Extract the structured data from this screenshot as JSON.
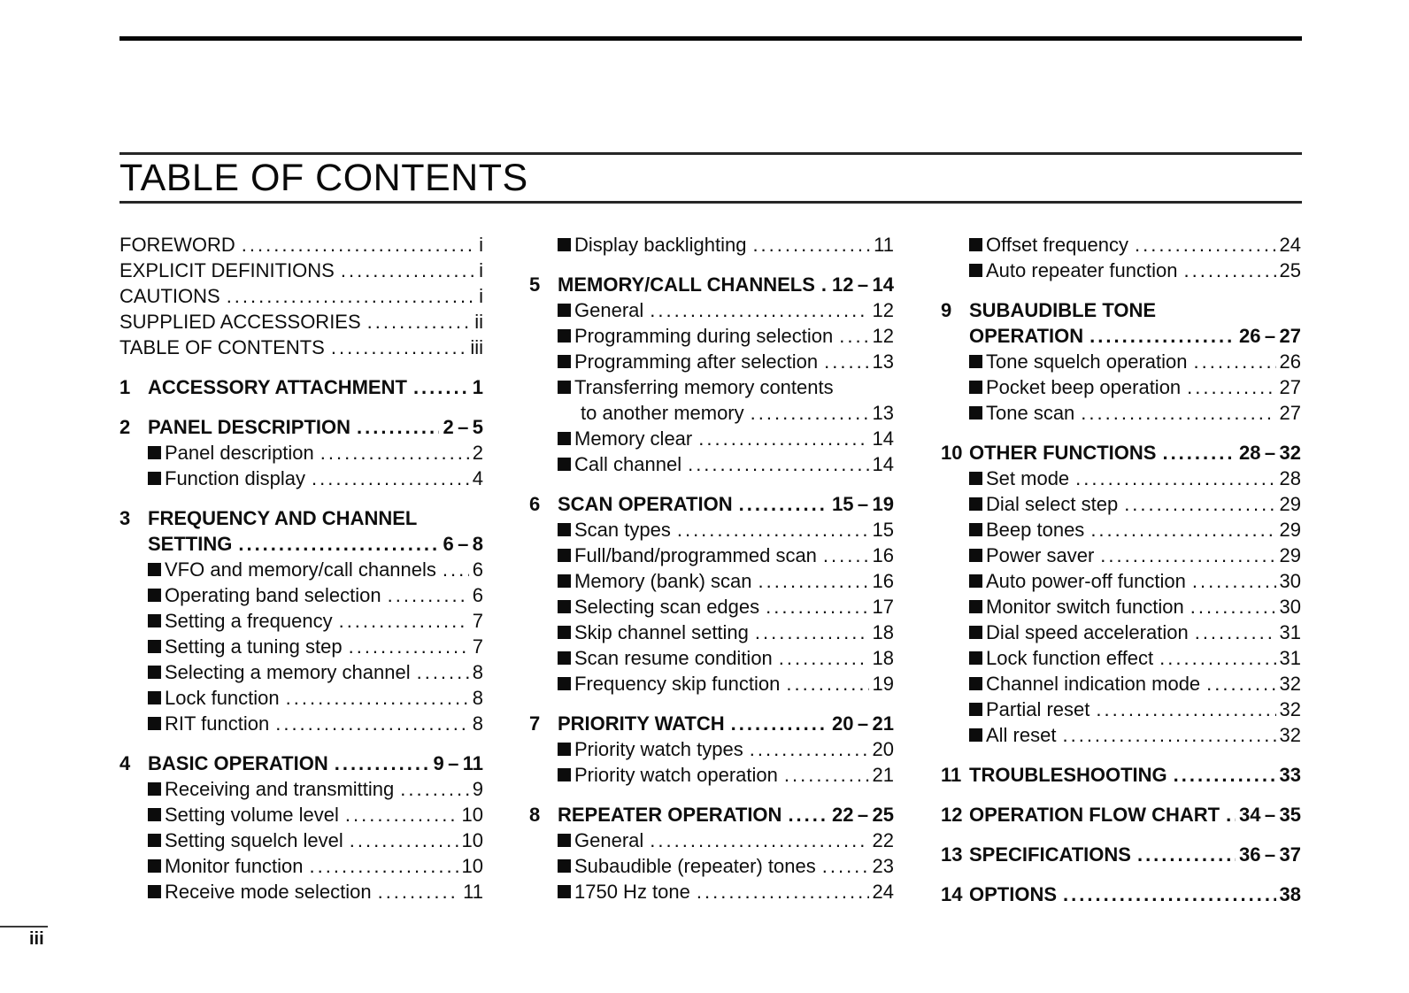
{
  "toc": {
    "title": "TABLE OF CONTENTS",
    "page_marker": "iii",
    "columns": [
      {
        "blocks": [
          {
            "kind": "plain",
            "items": [
              {
                "label": "FOREWORD",
                "page": "i"
              },
              {
                "label": "EXPLICIT DEFINITIONS",
                "page": "i"
              },
              {
                "label": "CAUTIONS",
                "page": "i"
              },
              {
                "label": "SUPPLIED ACCESSORIES",
                "page": "ii"
              },
              {
                "label": "TABLE OF CONTENTS",
                "page": "iii"
              }
            ]
          },
          {
            "kind": "section",
            "num": "1",
            "title_lines": [
              {
                "text": "ACCESSORY ATTACHMENT",
                "page": "1"
              }
            ],
            "items": []
          },
          {
            "kind": "section",
            "num": "2",
            "title_lines": [
              {
                "text": "PANEL DESCRIPTION",
                "page": "2 – 5"
              }
            ],
            "items": [
              {
                "label": "Panel description",
                "page": "2"
              },
              {
                "label": "Function display",
                "page": "4"
              }
            ]
          },
          {
            "kind": "section",
            "num": "3",
            "title_lines": [
              {
                "text": "FREQUENCY AND CHANNEL"
              },
              {
                "text": "SETTING",
                "page": "6 – 8"
              }
            ],
            "items": [
              {
                "label": "VFO and memory/call channels",
                "page": "6"
              },
              {
                "label": "Operating band selection",
                "page": "6"
              },
              {
                "label": "Setting a frequency",
                "page": "7"
              },
              {
                "label": "Setting a tuning step",
                "page": "7"
              },
              {
                "label": "Selecting a memory channel",
                "page": "8"
              },
              {
                "label": "Lock function",
                "page": "8"
              },
              {
                "label": "RIT function",
                "page": "8"
              }
            ]
          },
          {
            "kind": "section",
            "num": "4",
            "title_lines": [
              {
                "text": "BASIC OPERATION",
                "page": "9 – 11"
              }
            ],
            "items": [
              {
                "label": "Receiving and transmitting",
                "page": "9"
              },
              {
                "label": "Setting volume level",
                "page": "10"
              },
              {
                "label": "Setting squelch level",
                "page": "10"
              },
              {
                "label": "Monitor function",
                "page": "10"
              },
              {
                "label": "Receive mode selection",
                "page": "11"
              }
            ]
          }
        ]
      },
      {
        "blocks": [
          {
            "kind": "items",
            "items": [
              {
                "label": "Display backlighting",
                "page": "11"
              }
            ]
          },
          {
            "kind": "section",
            "num": "5",
            "title_lines": [
              {
                "text": "MEMORY/CALL CHANNELS",
                "page": "12 – 14"
              }
            ],
            "items": [
              {
                "label": "General",
                "page": "12"
              },
              {
                "label": "Programming during selection",
                "page": "12"
              },
              {
                "label": "Programming after selection",
                "page": "13"
              },
              {
                "label": "Transferring memory contents",
                "label2": "to another memory",
                "page": "13"
              },
              {
                "label": "Memory clear",
                "page": "14"
              },
              {
                "label": "Call channel",
                "page": "14"
              }
            ]
          },
          {
            "kind": "section",
            "num": "6",
            "title_lines": [
              {
                "text": "SCAN OPERATION",
                "page": "15 – 19"
              }
            ],
            "items": [
              {
                "label": "Scan types",
                "page": "15"
              },
              {
                "label": "Full/band/programmed scan",
                "page": "16"
              },
              {
                "label": "Memory (bank) scan",
                "page": "16"
              },
              {
                "label": "Selecting scan edges",
                "page": "17"
              },
              {
                "label": "Skip channel setting",
                "page": "18"
              },
              {
                "label": "Scan resume condition",
                "page": "18"
              },
              {
                "label": "Frequency skip function",
                "page": "19"
              }
            ]
          },
          {
            "kind": "section",
            "num": "7",
            "title_lines": [
              {
                "text": "PRIORITY WATCH",
                "page": "20 – 21"
              }
            ],
            "items": [
              {
                "label": "Priority watch types",
                "page": "20"
              },
              {
                "label": "Priority watch operation",
                "page": "21"
              }
            ]
          },
          {
            "kind": "section",
            "num": "8",
            "title_lines": [
              {
                "text": "REPEATER OPERATION",
                "page": "22 – 25"
              }
            ],
            "items": [
              {
                "label": "General",
                "page": "22"
              },
              {
                "label": "Subaudible (repeater) tones",
                "page": "23"
              },
              {
                "label": "1750 Hz tone",
                "page": "24"
              }
            ]
          }
        ]
      },
      {
        "blocks": [
          {
            "kind": "items",
            "items": [
              {
                "label": "Offset frequency",
                "page": "24"
              },
              {
                "label": "Auto repeater function",
                "page": "25"
              }
            ]
          },
          {
            "kind": "section",
            "num": "9",
            "title_lines": [
              {
                "text": "SUBAUDIBLE TONE"
              },
              {
                "text": "OPERATION",
                "page": "26 – 27"
              }
            ],
            "items": [
              {
                "label": "Tone squelch operation",
                "page": "26"
              },
              {
                "label": "Pocket beep operation",
                "page": "27"
              },
              {
                "label": "Tone scan",
                "page": "27"
              }
            ]
          },
          {
            "kind": "section",
            "num": "10",
            "title_lines": [
              {
                "text": "OTHER FUNCTIONS",
                "page": "28 – 32"
              }
            ],
            "items": [
              {
                "label": "Set mode",
                "page": "28"
              },
              {
                "label": "Dial select step",
                "page": "29"
              },
              {
                "label": "Beep tones",
                "page": "29"
              },
              {
                "label": "Power saver",
                "page": "29"
              },
              {
                "label": "Auto power-off function",
                "page": "30"
              },
              {
                "label": "Monitor switch function",
                "page": "30"
              },
              {
                "label": "Dial speed acceleration",
                "page": "31"
              },
              {
                "label": "Lock function effect",
                "page": "31"
              },
              {
                "label": "Channel indication mode",
                "page": "32"
              },
              {
                "label": "Partial reset",
                "page": "32"
              },
              {
                "label": "All reset",
                "page": "32"
              }
            ]
          },
          {
            "kind": "section",
            "num": "11",
            "title_lines": [
              {
                "text": "TROUBLESHOOTING",
                "page": "33"
              }
            ],
            "items": []
          },
          {
            "kind": "section",
            "num": "12",
            "title_lines": [
              {
                "text": "OPERATION FLOW CHART",
                "page": "34 – 35"
              }
            ],
            "items": []
          },
          {
            "kind": "section",
            "num": "13",
            "title_lines": [
              {
                "text": "SPECIFICATIONS",
                "page": "36 – 37"
              }
            ],
            "items": []
          },
          {
            "kind": "section",
            "num": "14",
            "title_lines": [
              {
                "text": "OPTIONS",
                "page": "38"
              }
            ],
            "items": []
          }
        ]
      }
    ]
  }
}
